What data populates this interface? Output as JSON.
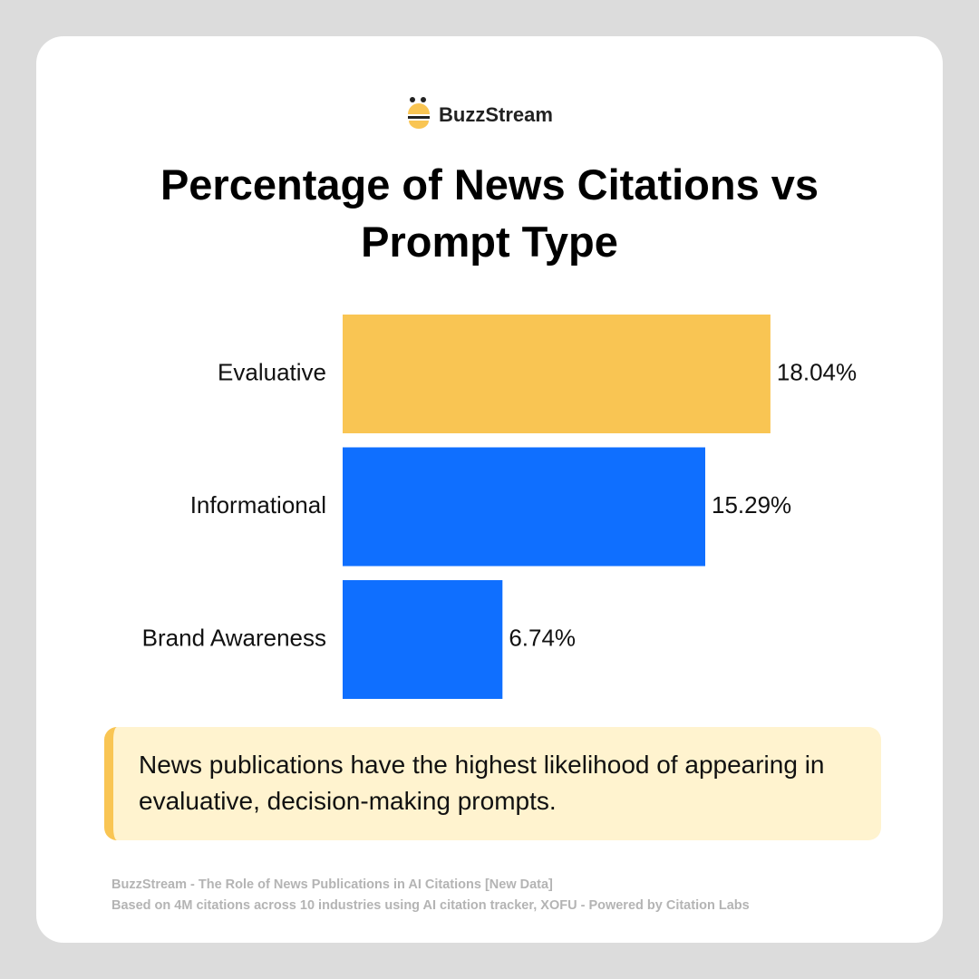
{
  "brand": "BuzzStream",
  "chart_data": {
    "type": "bar",
    "orientation": "horizontal",
    "title": "Percentage of News Citations vs Prompt Type",
    "categories": [
      "Evaluative",
      "Informational",
      "Brand Awareness"
    ],
    "values": [
      18.04,
      15.29,
      6.74
    ],
    "value_labels": [
      "18.04%",
      "15.29%",
      "6.74%"
    ],
    "colors": [
      "#f9c553",
      "#0f6fff",
      "#0f6fff"
    ]
  },
  "callout": "News publications have the highest likelihood of appearing in evaluative, decision-making prompts.",
  "source": [
    "BuzzStream - The Role of News Publications in AI Citations [New Data]",
    "Based on 4M citations across 10 industries using AI citation tracker, XOFU - Powered by Citation Labs"
  ]
}
